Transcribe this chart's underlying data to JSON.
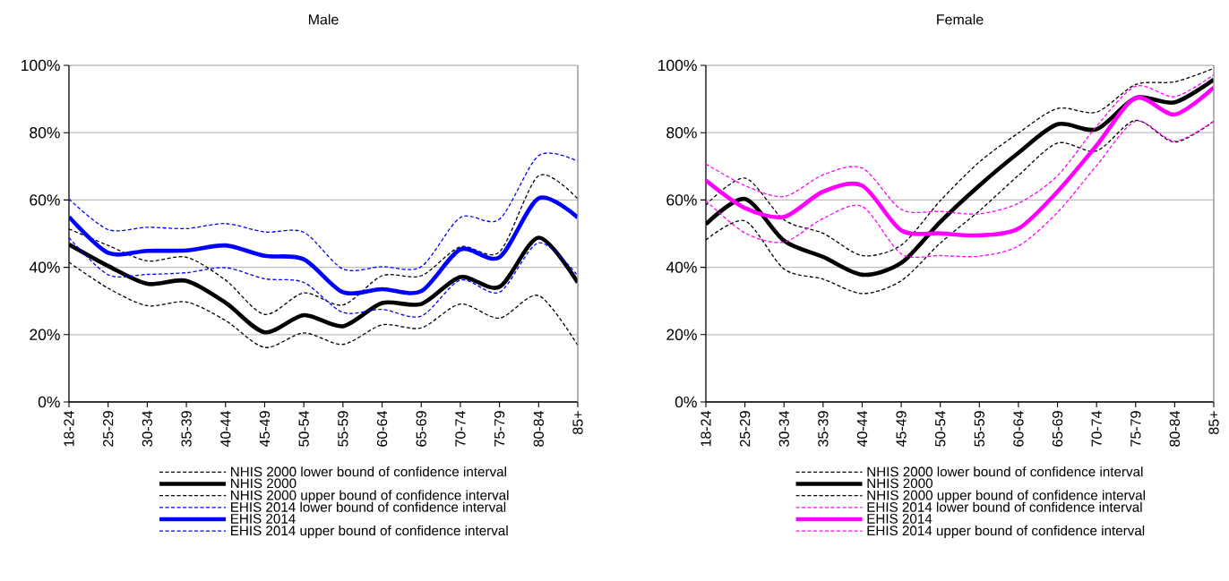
{
  "chart_data": [
    {
      "type": "line",
      "title": "Male",
      "categories": [
        "18-24",
        "25-29",
        "30-34",
        "35-39",
        "40-44",
        "45-49",
        "50-54",
        "55-59",
        "60-64",
        "65-69",
        "70-74",
        "75-79",
        "80-84",
        "85+"
      ],
      "series": [
        {
          "name": "NHIS 2000 lower bound of confidence interval",
          "color": "#000000",
          "line_style": "dashed",
          "values": [
            41.5,
            33.8,
            28.6,
            29.7,
            24.2,
            16.2,
            20.5,
            17.1,
            22.9,
            22.0,
            29.1,
            24.9,
            31.6,
            16.8
          ]
        },
        {
          "name": "NHIS 2000",
          "color": "#000000",
          "line_style": "solid",
          "values": [
            46.8,
            40.4,
            35.1,
            36.0,
            29.5,
            20.7,
            25.8,
            22.5,
            29.4,
            29.1,
            37.1,
            34.2,
            48.8,
            35.5
          ]
        },
        {
          "name": "NHIS 2000 upper bound of confidence interval",
          "color": "#000000",
          "line_style": "dashed",
          "values": [
            51.4,
            46.5,
            41.9,
            43.0,
            36.2,
            26.0,
            32.4,
            28.8,
            37.5,
            37.5,
            46.1,
            44.6,
            67.2,
            60.3
          ]
        },
        {
          "name": "EHIS 2014 lower bound of confidence interval",
          "color": "#0000ff",
          "line_style": "dashed",
          "values": [
            48.8,
            37.8,
            37.9,
            38.4,
            39.9,
            36.6,
            35.5,
            26.6,
            27.5,
            25.5,
            36.2,
            32.6,
            47.3,
            37.5
          ]
        },
        {
          "name": "EHIS 2014",
          "color": "#0000ff",
          "line_style": "solid",
          "values": [
            55.0,
            44.3,
            44.9,
            45.0,
            46.5,
            43.4,
            42.4,
            32.6,
            33.5,
            32.9,
            45.3,
            43.0,
            60.5,
            54.8
          ]
        },
        {
          "name": "EHIS 2014 upper bound of confidence interval",
          "color": "#0000ff",
          "line_style": "dashed",
          "values": [
            60.3,
            51.2,
            51.9,
            51.5,
            53.0,
            50.5,
            50.4,
            39.5,
            40.2,
            40.2,
            54.8,
            54.3,
            73.2,
            71.5
          ]
        }
      ],
      "ylim": [
        0,
        100
      ],
      "yticks": [
        {
          "value": 0,
          "label": "0%"
        },
        {
          "value": 20,
          "label": "20%"
        },
        {
          "value": 40,
          "label": "40%"
        },
        {
          "value": 60,
          "label": "60%"
        },
        {
          "value": 80,
          "label": "80%"
        },
        {
          "value": 100,
          "label": "100%"
        }
      ],
      "grid": "y",
      "legend": "bottom"
    },
    {
      "type": "line",
      "title": "Female",
      "categories": [
        "18-24",
        "25-29",
        "30-34",
        "35-39",
        "40-44",
        "45-49",
        "50-54",
        "55-59",
        "60-64",
        "65-69",
        "70-74",
        "75-79",
        "80-84",
        "85+"
      ],
      "series": [
        {
          "name": "NHIS 2000 lower bound of confidence interval",
          "color": "#000000",
          "line_style": "dashed",
          "values": [
            48.1,
            53.8,
            39.5,
            36.5,
            32.2,
            36.0,
            47.2,
            56.8,
            67.3,
            76.9,
            74.6,
            83.7,
            77.2,
            83.4
          ]
        },
        {
          "name": "NHIS 2000",
          "color": "#000000",
          "line_style": "solid",
          "values": [
            52.8,
            60.3,
            47.9,
            43.1,
            37.8,
            41.3,
            53.5,
            64.3,
            74.0,
            82.5,
            81.0,
            90.3,
            89.0,
            95.8
          ]
        },
        {
          "name": "NHIS 2000 upper bound of confidence interval",
          "color": "#000000",
          "line_style": "dashed",
          "values": [
            58.5,
            66.5,
            54.1,
            50.1,
            43.5,
            46.6,
            59.8,
            71.3,
            79.9,
            87.2,
            86.1,
            94.3,
            95.1,
            99.1
          ]
        },
        {
          "name": "EHIS 2014 lower bound of confidence interval",
          "color": "#ff00ff",
          "line_style": "dashed",
          "values": [
            59.8,
            50.2,
            47.5,
            54.5,
            58.1,
            44.0,
            43.5,
            43.3,
            46.3,
            56.3,
            70.2,
            83.4,
            77.5,
            83.4
          ]
        },
        {
          "name": "EHIS 2014",
          "color": "#ff00ff",
          "line_style": "solid",
          "values": [
            65.8,
            57.6,
            55.0,
            62.5,
            64.3,
            51.0,
            50.1,
            49.5,
            51.5,
            62.5,
            76.2,
            90.3,
            85.4,
            93.4
          ]
        },
        {
          "name": "EHIS 2014 upper bound of confidence interval",
          "color": "#ff00ff",
          "line_style": "dashed",
          "values": [
            70.7,
            64.3,
            61.0,
            67.5,
            69.5,
            57.2,
            56.6,
            55.9,
            59.0,
            67.2,
            81.9,
            93.8,
            90.7,
            97.2
          ]
        }
      ],
      "ylim": [
        0,
        100
      ],
      "yticks": [
        {
          "value": 0,
          "label": "0%"
        },
        {
          "value": 20,
          "label": "20%"
        },
        {
          "value": 40,
          "label": "40%"
        },
        {
          "value": 60,
          "label": "60%"
        },
        {
          "value": 80,
          "label": "80%"
        },
        {
          "value": 100,
          "label": "100%"
        }
      ],
      "grid": "y",
      "legend": "bottom"
    }
  ]
}
